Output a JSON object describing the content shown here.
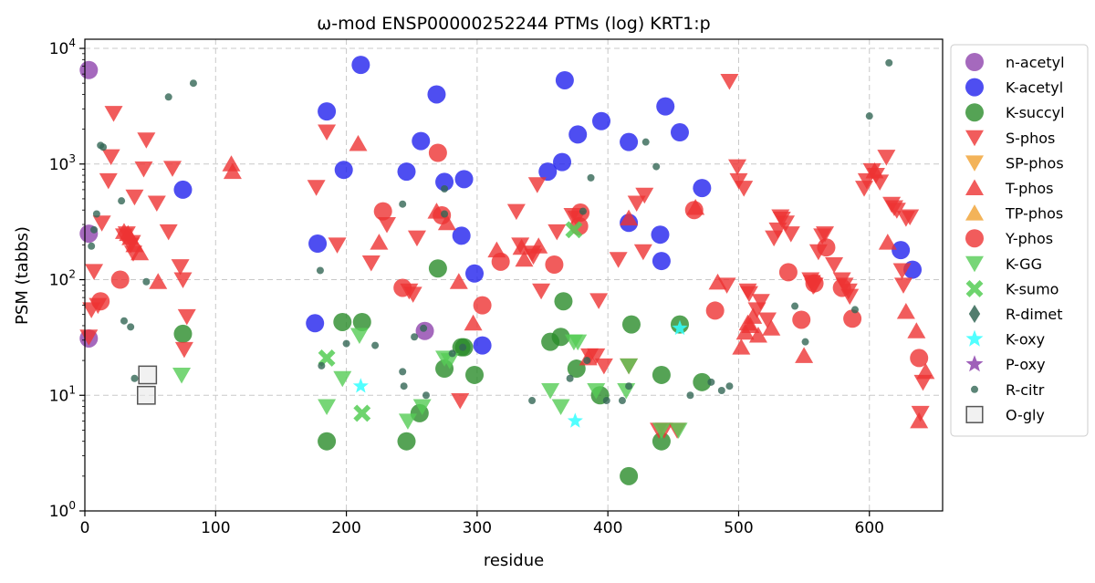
{
  "chart_data": {
    "type": "scatter",
    "title": "ω-mod ENSP00000252244 PTMs (log) KRT1:p",
    "xlabel": "residue",
    "ylabel": "PSM (tabbs)",
    "xlim": [
      0,
      656
    ],
    "ylim": [
      1,
      12000
    ],
    "yscale": "log",
    "grid": true,
    "legend_position": "outside-right",
    "x_ticks": [
      0,
      100,
      200,
      300,
      400,
      500,
      600
    ],
    "y_ticks": [
      {
        "value": 1,
        "base": "10",
        "exp": "0"
      },
      {
        "value": 10,
        "base": "10",
        "exp": "1"
      },
      {
        "value": 100,
        "base": "10",
        "exp": "2"
      },
      {
        "value": 1000,
        "base": "10",
        "exp": "3"
      },
      {
        "value": 10000,
        "base": "10",
        "exp": "4"
      }
    ],
    "series": [
      {
        "name": "n-acetyl",
        "marker": "circle",
        "color": "#8e44ad",
        "size": 10,
        "points": [
          [
            3,
            6500
          ],
          [
            3,
            250
          ],
          [
            3,
            31
          ],
          [
            260,
            36
          ]
        ]
      },
      {
        "name": "K-acetyl",
        "marker": "circle",
        "color": "#2222ee",
        "size": 10,
        "points": [
          [
            75,
            600
          ],
          [
            176,
            42
          ],
          [
            178,
            205
          ],
          [
            185,
            2850
          ],
          [
            198,
            890
          ],
          [
            211,
            7200
          ],
          [
            246,
            860
          ],
          [
            257,
            1580
          ],
          [
            269,
            4000
          ],
          [
            275,
            700
          ],
          [
            288,
            240
          ],
          [
            290,
            740
          ],
          [
            298,
            113
          ],
          [
            304,
            27
          ],
          [
            354,
            860
          ],
          [
            365,
            1040
          ],
          [
            367,
            5300
          ],
          [
            377,
            1800
          ],
          [
            395,
            2350
          ],
          [
            416,
            1550
          ],
          [
            416,
            310
          ],
          [
            440,
            245
          ],
          [
            441,
            145
          ],
          [
            444,
            3150
          ],
          [
            455,
            1880
          ],
          [
            472,
            620
          ],
          [
            624,
            180
          ],
          [
            633,
            122
          ]
        ]
      },
      {
        "name": "K-succyl",
        "marker": "circle",
        "color": "#2a8c2a",
        "size": 10,
        "points": [
          [
            75,
            34
          ],
          [
            185,
            4
          ],
          [
            197,
            43
          ],
          [
            212,
            43
          ],
          [
            246,
            4
          ],
          [
            256,
            7
          ],
          [
            270,
            125
          ],
          [
            275,
            17
          ],
          [
            288,
            26
          ],
          [
            290,
            26
          ],
          [
            298,
            15
          ],
          [
            356,
            29
          ],
          [
            364,
            32
          ],
          [
            366,
            65
          ],
          [
            376,
            17
          ],
          [
            394,
            10
          ],
          [
            416,
            2
          ],
          [
            418,
            41
          ],
          [
            441,
            15
          ],
          [
            441,
            4
          ],
          [
            455,
            41
          ],
          [
            472,
            13
          ]
        ]
      },
      {
        "name": "S-phos",
        "marker": "triangle-down",
        "color": "#ee3333",
        "size": 10,
        "points": [
          [
            3,
            32
          ],
          [
            5,
            55
          ],
          [
            7,
            118
          ],
          [
            10,
            60
          ],
          [
            13,
            310
          ],
          [
            18,
            720
          ],
          [
            20,
            1160
          ],
          [
            22,
            2750
          ],
          [
            30,
            240
          ],
          [
            32,
            250
          ],
          [
            35,
            200
          ],
          [
            36,
            210
          ],
          [
            37,
            170
          ],
          [
            38,
            520
          ],
          [
            45,
            910
          ],
          [
            47,
            1620
          ],
          [
            55,
            460
          ],
          [
            64,
            260
          ],
          [
            67,
            920
          ],
          [
            73,
            130
          ],
          [
            75,
            100
          ],
          [
            76,
            25
          ],
          [
            78,
            48
          ],
          [
            177,
            630
          ],
          [
            185,
            1900
          ],
          [
            193,
            200
          ],
          [
            219,
            140
          ],
          [
            231,
            300
          ],
          [
            248,
            80
          ],
          [
            251,
            75
          ],
          [
            254,
            230
          ],
          [
            287,
            9
          ],
          [
            330,
            390
          ],
          [
            333,
            200
          ],
          [
            342,
            170
          ],
          [
            343,
            160
          ],
          [
            346,
            665
          ],
          [
            349,
            80
          ],
          [
            361,
            260
          ],
          [
            373,
            360
          ],
          [
            376,
            340
          ],
          [
            386,
            22
          ],
          [
            391,
            22
          ],
          [
            393,
            66
          ],
          [
            397,
            18
          ],
          [
            408,
            150
          ],
          [
            416,
            18
          ],
          [
            422,
            460
          ],
          [
            427,
            175
          ],
          [
            428,
            540
          ],
          [
            439,
            5
          ],
          [
            443,
            5
          ],
          [
            453,
            5
          ],
          [
            491,
            90
          ],
          [
            493,
            5200
          ],
          [
            499,
            950
          ],
          [
            500,
            720
          ],
          [
            504,
            620
          ],
          [
            507,
            80
          ],
          [
            508,
            76
          ],
          [
            514,
            55
          ],
          [
            517,
            65
          ],
          [
            522,
            45
          ],
          [
            527,
            230
          ],
          [
            530,
            270
          ],
          [
            532,
            350
          ],
          [
            533,
            335
          ],
          [
            536,
            310
          ],
          [
            540,
            250
          ],
          [
            555,
            100
          ],
          [
            556,
            95
          ],
          [
            557,
            88
          ],
          [
            558,
            90
          ],
          [
            561,
            175
          ],
          [
            564,
            240
          ],
          [
            566,
            250
          ],
          [
            573,
            135
          ],
          [
            579,
            100
          ],
          [
            581,
            90
          ],
          [
            584,
            80
          ],
          [
            585,
            72
          ],
          [
            596,
            620
          ],
          [
            598,
            720
          ],
          [
            602,
            880
          ],
          [
            605,
            800
          ],
          [
            608,
            700
          ],
          [
            613,
            1150
          ],
          [
            617,
            450
          ],
          [
            619,
            420
          ],
          [
            621,
            400
          ],
          [
            625,
            120
          ],
          [
            626,
            90
          ],
          [
            628,
            340
          ],
          [
            631,
            350
          ],
          [
            639,
            7
          ],
          [
            641,
            13
          ]
        ]
      },
      {
        "name": "T-phos",
        "marker": "triangle-up",
        "color": "#ee3333",
        "size": 10,
        "points": [
          [
            30,
            260
          ],
          [
            33,
            250
          ],
          [
            35,
            230
          ],
          [
            38,
            200
          ],
          [
            42,
            170
          ],
          [
            56,
            96
          ],
          [
            112,
            1000
          ],
          [
            113,
            860
          ],
          [
            209,
            1500
          ],
          [
            225,
            210
          ],
          [
            269,
            390
          ],
          [
            277,
            310
          ],
          [
            286,
            96
          ],
          [
            297,
            42
          ],
          [
            315,
            180
          ],
          [
            334,
            190
          ],
          [
            336,
            150
          ],
          [
            347,
            195
          ],
          [
            385,
            21
          ],
          [
            416,
            340
          ],
          [
            467,
            420
          ],
          [
            484,
            95
          ],
          [
            502,
            26
          ],
          [
            505,
            35
          ],
          [
            507,
            42
          ],
          [
            509,
            40
          ],
          [
            511,
            48
          ],
          [
            515,
            33
          ],
          [
            525,
            38
          ],
          [
            550,
            22
          ],
          [
            604,
            870
          ],
          [
            614,
            210
          ],
          [
            628,
            53
          ],
          [
            636,
            36
          ],
          [
            638,
            6
          ],
          [
            643,
            16
          ]
        ]
      },
      {
        "name": "Y-phos",
        "marker": "circle",
        "color": "#ee3333",
        "size": 10,
        "points": [
          [
            12,
            65
          ],
          [
            27,
            100
          ],
          [
            228,
            390
          ],
          [
            243,
            85
          ],
          [
            270,
            1250
          ],
          [
            273,
            360
          ],
          [
            304,
            60
          ],
          [
            318,
            143
          ],
          [
            359,
            135
          ],
          [
            378,
            290
          ],
          [
            379,
            380
          ],
          [
            466,
            400
          ],
          [
            482,
            54
          ],
          [
            538,
            116
          ],
          [
            548,
            45
          ],
          [
            558,
            93
          ],
          [
            567,
            190
          ],
          [
            579,
            85
          ],
          [
            587,
            46
          ],
          [
            638,
            21
          ]
        ]
      },
      {
        "name": "K-GG",
        "marker": "triangle-down",
        "color": "#55cc55",
        "size": 10,
        "points": [
          [
            74,
            15
          ],
          [
            185,
            8
          ],
          [
            197,
            14
          ],
          [
            210,
            33
          ],
          [
            247,
            6
          ],
          [
            258,
            8
          ],
          [
            275,
            21
          ],
          [
            279,
            20
          ],
          [
            356,
            11
          ],
          [
            364,
            8
          ],
          [
            374,
            29
          ],
          [
            377,
            29
          ],
          [
            391,
            11
          ],
          [
            414,
            11
          ],
          [
            416,
            18
          ],
          [
            441,
            5
          ],
          [
            454,
            5
          ]
        ]
      },
      {
        "name": "K-sumo",
        "marker": "x",
        "color": "#55cc55",
        "size": 10,
        "points": [
          [
            185,
            21
          ],
          [
            212,
            7
          ],
          [
            374,
            270
          ]
        ]
      },
      {
        "name": "K-oxy",
        "marker": "star",
        "color": "#33ffff",
        "size": 9,
        "points": [
          [
            211,
            12
          ],
          [
            375,
            6
          ],
          [
            455,
            38
          ]
        ]
      },
      {
        "name": "R-citr",
        "marker": "circle",
        "color": "#336655",
        "size": 4,
        "points": [
          [
            5,
            195
          ],
          [
            7,
            270
          ],
          [
            9,
            370
          ],
          [
            12,
            1450
          ],
          [
            14,
            1400
          ],
          [
            28,
            480
          ],
          [
            30,
            44
          ],
          [
            35,
            39
          ],
          [
            38,
            14
          ],
          [
            47,
            96
          ],
          [
            64,
            3800
          ],
          [
            83,
            5000
          ],
          [
            181,
            18
          ],
          [
            180,
            120
          ],
          [
            200,
            28
          ],
          [
            222,
            27
          ],
          [
            244,
            12
          ],
          [
            252,
            32
          ],
          [
            259,
            38
          ],
          [
            261,
            10
          ],
          [
            243,
            16
          ],
          [
            243,
            450
          ],
          [
            275,
            610
          ],
          [
            275,
            370
          ],
          [
            281,
            23
          ],
          [
            289,
            26
          ],
          [
            342,
            9
          ],
          [
            371,
            14
          ],
          [
            381,
            390
          ],
          [
            384,
            20
          ],
          [
            387,
            760
          ],
          [
            399,
            9
          ],
          [
            411,
            9
          ],
          [
            416,
            12
          ],
          [
            437,
            950
          ],
          [
            429,
            1550
          ],
          [
            463,
            10
          ],
          [
            479,
            13
          ],
          [
            487,
            11
          ],
          [
            493,
            12
          ],
          [
            543,
            59
          ],
          [
            551,
            29
          ],
          [
            589,
            55
          ],
          [
            600,
            2600
          ],
          [
            615,
            7500
          ]
        ]
      },
      {
        "name": "O-gly",
        "marker": "square",
        "color": "#555555",
        "size": 12,
        "points": [
          [
            48,
            15
          ],
          [
            47,
            10
          ]
        ]
      },
      {
        "name": "SP-phos",
        "marker": "triangle-down",
        "color": "#f0a030",
        "size": 10,
        "points": []
      },
      {
        "name": "TP-phos",
        "marker": "triangle-up",
        "color": "#f0a030",
        "size": 10,
        "points": []
      },
      {
        "name": "R-dimet",
        "marker": "diamond",
        "color": "#336655",
        "size": 10,
        "points": []
      },
      {
        "name": "P-oxy",
        "marker": "star",
        "color": "#8e44ad",
        "size": 10,
        "points": []
      }
    ],
    "legend_order": [
      "n-acetyl",
      "K-acetyl",
      "K-succyl",
      "S-phos",
      "SP-phos",
      "T-phos",
      "TP-phos",
      "Y-phos",
      "K-GG",
      "K-sumo",
      "R-dimet",
      "K-oxy",
      "P-oxy",
      "R-citr",
      "O-gly"
    ]
  }
}
